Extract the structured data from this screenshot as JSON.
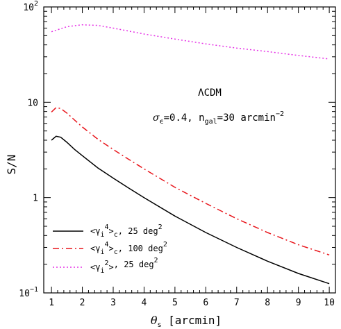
{
  "chart_data": {
    "type": "line",
    "xlabel_symbol": "θ",
    "xlabel_subscript": "s",
    "xlabel_unit": "[arcmin]",
    "ylabel": "S/N",
    "xlim": [
      0.75,
      10.2
    ],
    "ylim": [
      0.1,
      100
    ],
    "yscale": "log",
    "xticks": [
      1,
      2,
      3,
      4,
      5,
      6,
      7,
      8,
      9,
      10
    ],
    "yticks": [
      {
        "value": 0.1,
        "base": "10",
        "exp": "−1"
      },
      {
        "value": 1,
        "base": "1",
        "exp": ""
      },
      {
        "value": 10,
        "base": "10",
        "exp": ""
      },
      {
        "value": 100,
        "base": "10",
        "exp": "2"
      }
    ],
    "annotations": {
      "model": "ΛCDM",
      "sigma_symbol": "σ",
      "sigma_sub": "ϵ",
      "sigma_value": "=0.4, n",
      "ngal_sub": "gal",
      "ngal_value": "=30 arcmin",
      "ngal_exp": "−2"
    },
    "series": [
      {
        "id": "s1",
        "color": "#000000",
        "dash": "none",
        "legend": {
          "prefix": "<γ",
          "sub": "i",
          "sup": "4",
          "suffix": ">",
          "sub2": "c",
          "tail": ", 25 deg",
          "tail_sup": "2"
        },
        "x": [
          1.0,
          1.15,
          1.3,
          1.5,
          1.75,
          2.0,
          2.5,
          3.0,
          3.5,
          4.0,
          5.0,
          6.0,
          7.0,
          8.0,
          9.0,
          10.0
        ],
        "y": [
          4.0,
          4.4,
          4.3,
          3.8,
          3.2,
          2.75,
          2.05,
          1.6,
          1.26,
          1.0,
          0.64,
          0.43,
          0.3,
          0.215,
          0.16,
          0.125
        ]
      },
      {
        "id": "s2",
        "color": "#e8151b",
        "dash": "9,4,2,4",
        "legend": {
          "prefix": "<γ",
          "sub": "i",
          "sup": "4",
          "suffix": ">",
          "sub2": "c",
          "tail": ", 100 deg",
          "tail_sup": "2"
        },
        "x": [
          1.0,
          1.15,
          1.3,
          1.5,
          1.75,
          2.0,
          2.5,
          3.0,
          3.5,
          4.0,
          5.0,
          6.0,
          7.0,
          8.0,
          9.0,
          10.0
        ],
        "y": [
          7.9,
          8.8,
          8.6,
          7.7,
          6.5,
          5.5,
          4.1,
          3.2,
          2.52,
          2.0,
          1.28,
          0.87,
          0.6,
          0.43,
          0.32,
          0.25
        ]
      },
      {
        "id": "s3",
        "color": "#e632e6",
        "dash": "2,3",
        "legend": {
          "prefix": "<γ",
          "sub": "i",
          "sup": "2",
          "suffix": ">",
          "sub2": "",
          "tail": ", 25 deg",
          "tail_sup": "2"
        },
        "x": [
          1.0,
          1.5,
          2.0,
          2.5,
          3.0,
          4.0,
          5.0,
          6.0,
          7.0,
          8.0,
          9.0,
          10.0
        ],
        "y": [
          55,
          62,
          65,
          64,
          60,
          52,
          46,
          41,
          37,
          34,
          31,
          28.5
        ]
      }
    ]
  }
}
